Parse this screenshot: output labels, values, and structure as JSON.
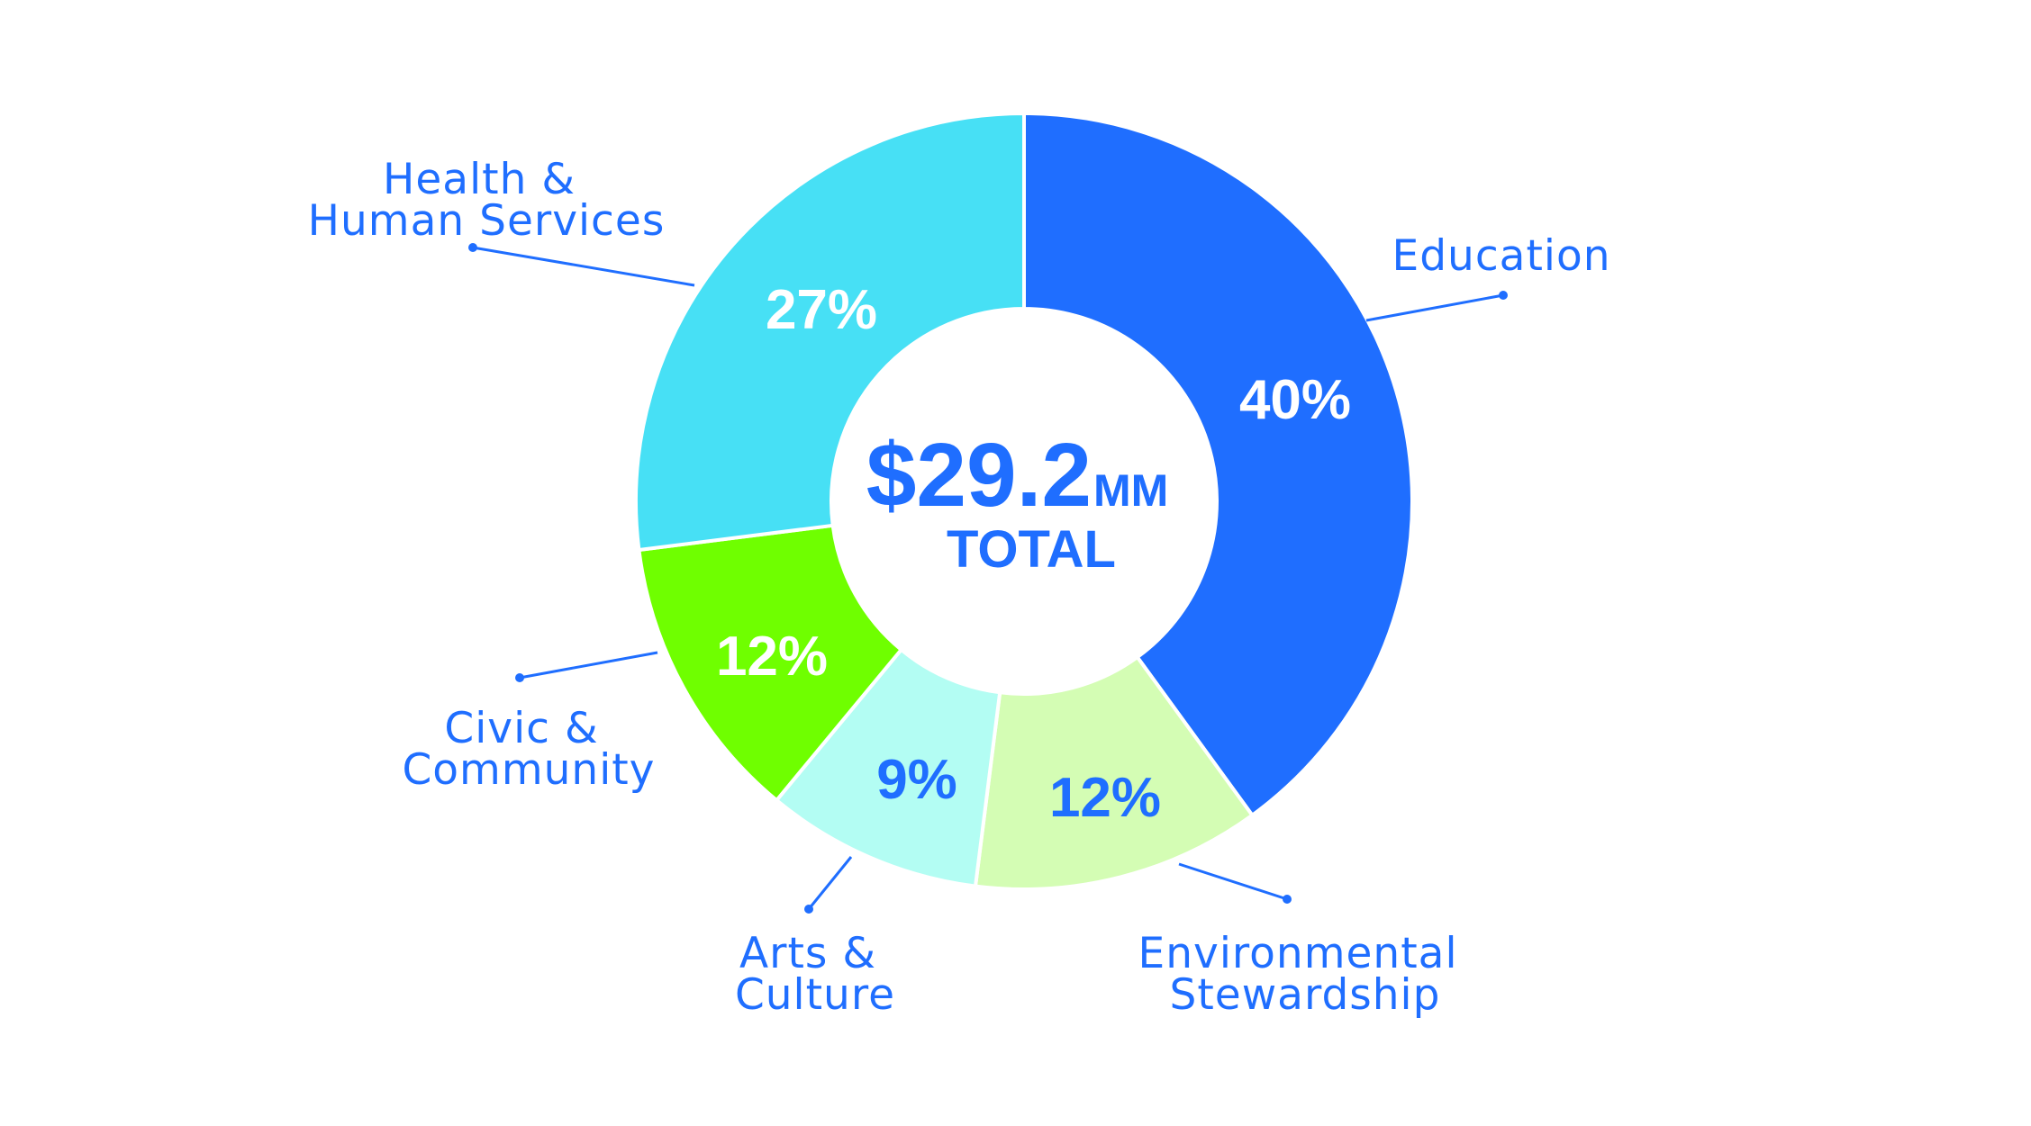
{
  "chart_data": {
    "type": "pie",
    "subtype": "donut",
    "title": "",
    "center_label": {
      "value": "$29.2",
      "unit": "MM",
      "caption": "TOTAL"
    },
    "categories": [
      "Education",
      "Environmental Stewardship",
      "Arts & Culture",
      "Civic & Community",
      "Health & Human Services"
    ],
    "values": [
      40,
      12,
      9,
      12,
      27
    ],
    "value_labels": [
      "40%",
      "12%",
      "9%",
      "12%",
      "27%"
    ],
    "colors": [
      "#1F6EFF",
      "#D4FDB4",
      "#B3FDF3",
      "#6FFF00",
      "#47E0F5"
    ],
    "label_text_colors": [
      "#FFFFFF",
      "#1F6EFF",
      "#1F6EFF",
      "#FFFFFF",
      "#FFFFFF"
    ],
    "legend": "callout labels with leader lines",
    "start_angle": "12 o'clock, clockwise"
  },
  "segments": [
    {
      "name": "Education",
      "label_lines": [
        "Education"
      ],
      "pct": "40%"
    },
    {
      "name": "Environmental Stewardship",
      "label_lines": [
        "Environmental",
        "Stewardship"
      ],
      "pct": "12%"
    },
    {
      "name": "Arts & Culture",
      "label_lines": [
        "Arts &",
        "Culture"
      ],
      "pct": "9%"
    },
    {
      "name": "Civic & Community",
      "label_lines": [
        "Civic &",
        "Community"
      ],
      "pct": "12%"
    },
    {
      "name": "Health & Human Services",
      "label_lines": [
        "Health &",
        "Human Services"
      ],
      "pct": "27%"
    }
  ],
  "center": {
    "amount": "$29.2",
    "unit": "MM",
    "caption": "TOTAL"
  },
  "theme": {
    "text_color": "#1F6EFF",
    "background": "#FFFFFF"
  }
}
